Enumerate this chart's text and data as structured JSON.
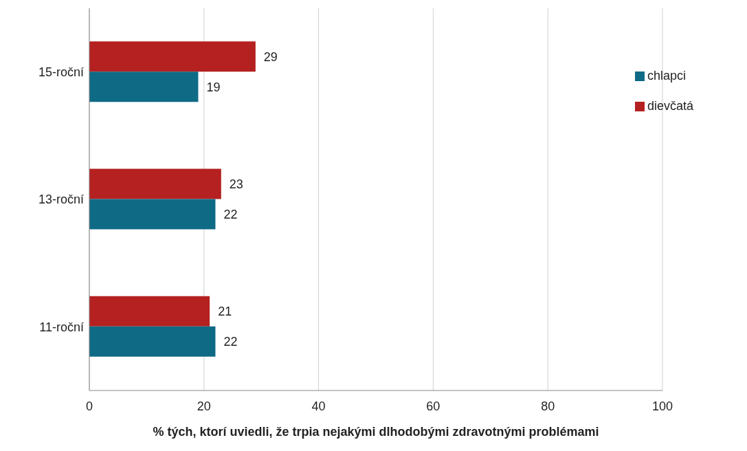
{
  "chart_data": {
    "type": "bar",
    "orientation": "horizontal",
    "xlabel": "% tých, ktorí uviedli, že trpia nejakými dlhodobými zdravotnými problémami",
    "categories": [
      "15-roční",
      "13-roční",
      "11-roční"
    ],
    "series": [
      {
        "name": "dievčatá",
        "color": "#b52020",
        "values": [
          29,
          23,
          21
        ]
      },
      {
        "name": "chlapci",
        "color": "#0f6a86",
        "values": [
          19,
          22,
          22
        ]
      }
    ],
    "xlim": [
      0,
      100
    ],
    "xticks": [
      0,
      20,
      40,
      60,
      80,
      100
    ],
    "grid": "x",
    "legend": "top right",
    "data_labels": true
  }
}
